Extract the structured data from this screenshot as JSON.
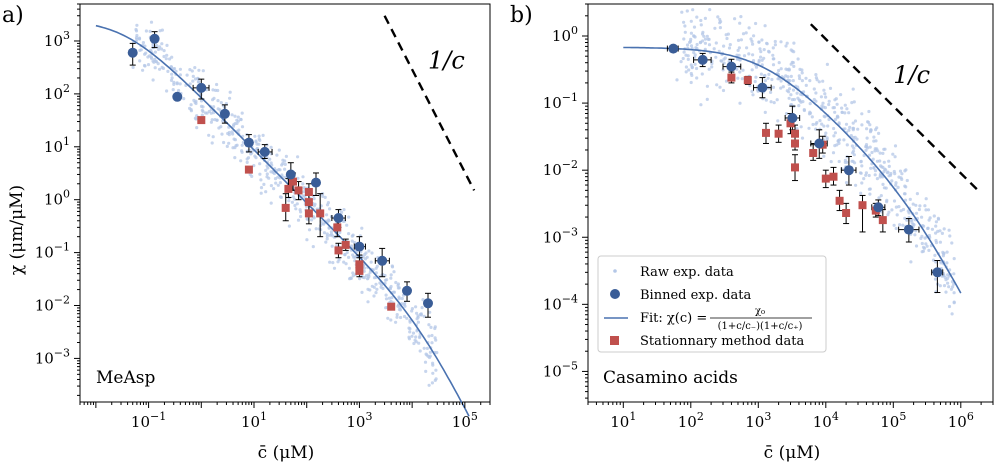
{
  "colors": {
    "raw": "#b4c7e7",
    "binned": "#3a5d97",
    "fit": "#4a72b0",
    "stationary": "#c0504d",
    "error": "#000000"
  },
  "chart_data": [
    {
      "type": "scatter",
      "panel_label": "a)",
      "inset_label": "MeAsp",
      "xlabel": "c̄ (μM)",
      "ylabel": "χ (μm/μM)",
      "xscale": "log",
      "yscale": "log",
      "xlim": [
        0.005,
        300000
      ],
      "ylim": [
        0.00015,
        5000
      ],
      "xticks": [
        {
          "v": 0.1,
          "m": "10",
          "e": "−1"
        },
        {
          "v": 10,
          "m": "10",
          "e": "1"
        },
        {
          "v": 1000,
          "m": "10",
          "e": "3"
        },
        {
          "v": 100000,
          "m": "10",
          "e": "5"
        }
      ],
      "yticks": [
        {
          "v": 0.001,
          "m": "10",
          "e": "−3"
        },
        {
          "v": 0.01,
          "m": "10",
          "e": "−2"
        },
        {
          "v": 0.1,
          "m": "10",
          "e": "−1"
        },
        {
          "v": 1,
          "m": "10",
          "e": "0"
        },
        {
          "v": 10,
          "m": "10",
          "e": "1"
        },
        {
          "v": 100,
          "m": "10",
          "e": "2"
        },
        {
          "v": 1000,
          "m": "10",
          "e": "3"
        }
      ],
      "annotation": {
        "text": "1/c",
        "x": 20000,
        "y": 300
      },
      "reference_line": {
        "label": "1/c",
        "x": [
          3000,
          150000
        ],
        "y": [
          3000,
          1.5
        ]
      },
      "fit": {
        "chi0": 2500,
        "c_minus": 0.035,
        "c_plus": 15000,
        "x_range": [
          0.01,
          120000
        ]
      },
      "binned": [
        {
          "x": 0.05,
          "y": 600,
          "ylo": 350,
          "yhi": 900
        },
        {
          "x": 0.13,
          "y": 1100,
          "ylo": 750,
          "yhi": 1500
        },
        {
          "x": 0.35,
          "y": 88,
          "ylo": 78,
          "yhi": 98
        },
        {
          "x": 1.0,
          "y": 130,
          "ylo": 80,
          "yhi": 190,
          "xlo": 0.7,
          "xhi": 1.4
        },
        {
          "x": 2.8,
          "y": 42,
          "ylo": 28,
          "yhi": 62
        },
        {
          "x": 8,
          "y": 12,
          "ylo": 8,
          "yhi": 17
        },
        {
          "x": 16,
          "y": 8,
          "ylo": 6,
          "yhi": 11,
          "xlo": 12,
          "xhi": 22
        },
        {
          "x": 50,
          "y": 3,
          "ylo": 2,
          "yhi": 5
        },
        {
          "x": 150,
          "y": 2.1,
          "ylo": 1.2,
          "yhi": 3.2
        },
        {
          "x": 400,
          "y": 0.45,
          "ylo": 0.3,
          "yhi": 0.65,
          "xlo": 300,
          "xhi": 540
        },
        {
          "x": 1000,
          "y": 0.13,
          "ylo": 0.08,
          "yhi": 0.2,
          "xlo": 800,
          "xhi": 1300
        },
        {
          "x": 2700,
          "y": 0.07,
          "ylo": 0.035,
          "yhi": 0.12,
          "xlo": 2000,
          "xhi": 3700
        },
        {
          "x": 8000,
          "y": 0.019,
          "ylo": 0.012,
          "yhi": 0.028
        },
        {
          "x": 20000,
          "y": 0.011,
          "ylo": 0.006,
          "yhi": 0.017
        }
      ],
      "stationary": [
        {
          "x": 1.0,
          "y": 32,
          "ylo": 28,
          "yhi": 36
        },
        {
          "x": 8,
          "y": 3.7,
          "ylo": 3.3,
          "yhi": 4.1
        },
        {
          "x": 40,
          "y": 0.7,
          "ylo": 0.4,
          "yhi": 1.3
        },
        {
          "x": 45,
          "y": 1.6,
          "ylo": 1.1,
          "yhi": 2.5
        },
        {
          "x": 55,
          "y": 2.2,
          "ylo": 1.5,
          "yhi": 3.2
        },
        {
          "x": 70,
          "y": 1.5,
          "ylo": 1.0,
          "yhi": 2.2
        },
        {
          "x": 110,
          "y": 1.4,
          "ylo": 0.9,
          "yhi": 2.0
        },
        {
          "x": 110,
          "y": 0.9,
          "ylo": 0.6,
          "yhi": 1.3
        },
        {
          "x": 110,
          "y": 0.55,
          "ylo": 0.35,
          "yhi": 0.8
        },
        {
          "x": 180,
          "y": 0.55,
          "ylo": 0.2,
          "yhi": 1.3
        },
        {
          "x": 380,
          "y": 0.3,
          "ylo": 0.2,
          "yhi": 0.45
        },
        {
          "x": 400,
          "y": 0.11,
          "ylo": 0.08,
          "yhi": 0.15
        },
        {
          "x": 550,
          "y": 0.14,
          "ylo": 0.11,
          "yhi": 0.18
        },
        {
          "x": 1000,
          "y": 0.06,
          "ylo": 0.04,
          "yhi": 0.09
        },
        {
          "x": 1000,
          "y": 0.045,
          "ylo": 0.035,
          "yhi": 0.06
        },
        {
          "x": 4000,
          "y": 0.0095,
          "ylo": 0.0085,
          "yhi": 0.0105
        }
      ],
      "raw": {
        "n": 650,
        "seed": 7,
        "x_range": [
          0.05,
          30000
        ],
        "scatter_decades": 0.28
      }
    },
    {
      "type": "scatter",
      "panel_label": "b)",
      "inset_label": "Casamino acids",
      "xlabel": "c̄ (μM)",
      "ylabel": "",
      "xscale": "log",
      "yscale": "log",
      "xlim": [
        3,
        3000000
      ],
      "ylim": [
        3.5e-06,
        3
      ],
      "xticks": [
        {
          "v": 10,
          "m": "10",
          "e": "1"
        },
        {
          "v": 100,
          "m": "10",
          "e": "2"
        },
        {
          "v": 1000,
          "m": "10",
          "e": "3"
        },
        {
          "v": 10000,
          "m": "10",
          "e": "4"
        },
        {
          "v": 100000,
          "m": "10",
          "e": "5"
        },
        {
          "v": 1000000,
          "m": "10",
          "e": "6"
        }
      ],
      "yticks": [
        {
          "v": 1e-05,
          "m": "10",
          "e": "−5"
        },
        {
          "v": 0.0001,
          "m": "10",
          "e": "−4"
        },
        {
          "v": 0.001,
          "m": "10",
          "e": "−3"
        },
        {
          "v": 0.01,
          "m": "10",
          "e": "−2"
        },
        {
          "v": 0.1,
          "m": "10",
          "e": "−1"
        },
        {
          "v": 1,
          "m": "10",
          "e": "0"
        }
      ],
      "annotation": {
        "text": "1/c",
        "x": 100000,
        "y": 0.2
      },
      "reference_line": {
        "label": "1/c",
        "x": [
          6000,
          1800000
        ],
        "y": [
          1.5,
          0.005
        ]
      },
      "fit": {
        "chi0": 0.68,
        "c_minus": 1200,
        "c_plus": 220000,
        "x_range": [
          10,
          1000000
        ]
      },
      "binned": [
        {
          "x": 55,
          "y": 0.65,
          "ylo": 0.58,
          "yhi": 0.72,
          "xlo": 45,
          "xhi": 65
        },
        {
          "x": 150,
          "y": 0.44,
          "ylo": 0.35,
          "yhi": 0.55,
          "xlo": 110,
          "xhi": 200
        },
        {
          "x": 400,
          "y": 0.35,
          "ylo": 0.27,
          "yhi": 0.45,
          "xlo": 300,
          "xhi": 550
        },
        {
          "x": 1150,
          "y": 0.17,
          "ylo": 0.12,
          "yhi": 0.24,
          "xlo": 850,
          "xhi": 1550
        },
        {
          "x": 3200,
          "y": 0.06,
          "ylo": 0.04,
          "yhi": 0.09,
          "xlo": 2500,
          "xhi": 4100
        },
        {
          "x": 8000,
          "y": 0.025,
          "ylo": 0.015,
          "yhi": 0.04,
          "xlo": 6000,
          "xhi": 10500
        },
        {
          "x": 22000,
          "y": 0.01,
          "ylo": 0.006,
          "yhi": 0.016,
          "xlo": 17000,
          "xhi": 28000
        },
        {
          "x": 60000,
          "y": 0.0028,
          "ylo": 0.0021,
          "yhi": 0.0036,
          "xlo": 48000,
          "xhi": 75000
        },
        {
          "x": 170000,
          "y": 0.0013,
          "ylo": 0.00085,
          "yhi": 0.0019,
          "xlo": 120000,
          "xhi": 240000
        },
        {
          "x": 450000,
          "y": 0.0003,
          "ylo": 0.00015,
          "yhi": 0.00045,
          "xlo": 370000,
          "xhi": 540000
        }
      ],
      "stationary": [
        {
          "x": 400,
          "y": 0.24,
          "ylo": 0.2,
          "yhi": 0.29
        },
        {
          "x": 700,
          "y": 0.22,
          "ylo": 0.19,
          "yhi": 0.25
        },
        {
          "x": 1300,
          "y": 0.036,
          "ylo": 0.025,
          "yhi": 0.05
        },
        {
          "x": 2000,
          "y": 0.035,
          "ylo": 0.026,
          "yhi": 0.047
        },
        {
          "x": 3000,
          "y": 0.05,
          "ylo": 0.035,
          "yhi": 0.07
        },
        {
          "x": 3500,
          "y": 0.035,
          "ylo": 0.026,
          "yhi": 0.047
        },
        {
          "x": 3500,
          "y": 0.025,
          "ylo": 0.02,
          "yhi": 0.032
        },
        {
          "x": 3500,
          "y": 0.011,
          "ylo": 0.007,
          "yhi": 0.017
        },
        {
          "x": 6500,
          "y": 0.018,
          "ylo": 0.014,
          "yhi": 0.024
        },
        {
          "x": 9000,
          "y": 0.024,
          "ylo": 0.018,
          "yhi": 0.032
        },
        {
          "x": 10000,
          "y": 0.0075,
          "ylo": 0.0055,
          "yhi": 0.01
        },
        {
          "x": 13000,
          "y": 0.008,
          "ylo": 0.006,
          "yhi": 0.011
        },
        {
          "x": 16000,
          "y": 0.0035,
          "ylo": 0.0025,
          "yhi": 0.005
        },
        {
          "x": 20000,
          "y": 0.0023,
          "ylo": 0.0016,
          "yhi": 0.0032
        },
        {
          "x": 35000,
          "y": 0.003,
          "ylo": 0.0012,
          "yhi": 0.0042
        },
        {
          "x": 55000,
          "y": 0.0025,
          "ylo": 0.002,
          "yhi": 0.0032
        },
        {
          "x": 70000,
          "y": 0.0018,
          "ylo": 0.0012,
          "yhi": 0.0026
        }
      ],
      "raw": {
        "n": 650,
        "seed": 11,
        "x_range": [
          60,
          800000
        ],
        "scatter_decades": 0.3
      }
    }
  ],
  "legend": {
    "placement": "bottom-left of panel b",
    "raw": "Raw exp. data",
    "binned": "Binned exp. data",
    "fit_prefix": "Fit: χ(c) =",
    "fit_num": "χ₀",
    "fit_den": "(1+c/c₋)(1+c/c₊)",
    "stationary": "Stationnary method data"
  }
}
